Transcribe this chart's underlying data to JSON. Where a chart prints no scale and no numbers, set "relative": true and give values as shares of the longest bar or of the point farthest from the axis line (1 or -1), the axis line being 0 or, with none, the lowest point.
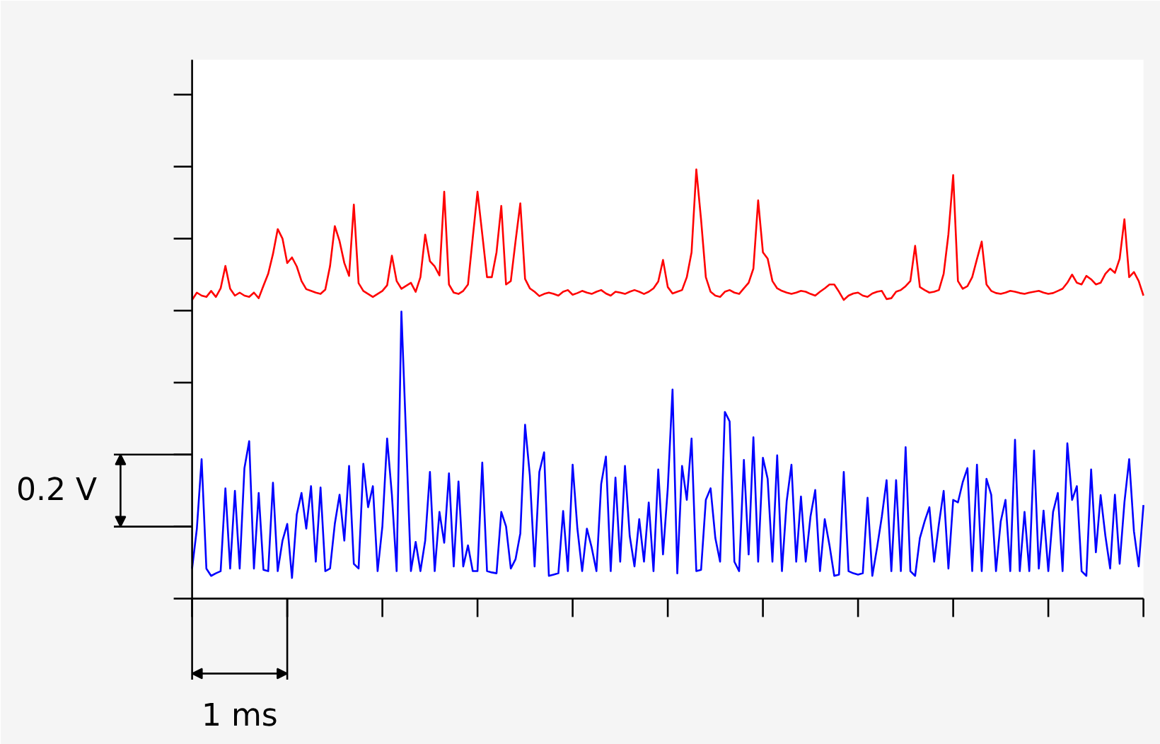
{
  "chart_data": {
    "type": "line",
    "relative": true,
    "categories": [
      null,
      null,
      null,
      null,
      null,
      null,
      null,
      null,
      null,
      null,
      null,
      null,
      null,
      null,
      null,
      null,
      null,
      null,
      null,
      null,
      null,
      null,
      null,
      null,
      null,
      null,
      null,
      null,
      null,
      null,
      null,
      null,
      null,
      null,
      null,
      null,
      null,
      null,
      null,
      null,
      null,
      null,
      null,
      null,
      null,
      null,
      null,
      null,
      null,
      null,
      null,
      null,
      null,
      null,
      null,
      null,
      null,
      null,
      null,
      null,
      null,
      null,
      null,
      null,
      null,
      null,
      null,
      null,
      null,
      null,
      null,
      null,
      null,
      null,
      null,
      null,
      null,
      null,
      null,
      null,
      null,
      null,
      null,
      null,
      null,
      null,
      null,
      null,
      null,
      null,
      null,
      null,
      null,
      null,
      null,
      null,
      null,
      null,
      null,
      null,
      null,
      null,
      null,
      null,
      null,
      null,
      null,
      null,
      null,
      null,
      null,
      null,
      null,
      null,
      null,
      null,
      null,
      null,
      null,
      null,
      null,
      null,
      null,
      null,
      null,
      null,
      null,
      null,
      null,
      null,
      null,
      null,
      null,
      null,
      null,
      null,
      null,
      null,
      null,
      null,
      null,
      null,
      null,
      null,
      null,
      null,
      null,
      null,
      null,
      null,
      null,
      null,
      null,
      null,
      null,
      null,
      null,
      null,
      null,
      null,
      null,
      null,
      null,
      null,
      null,
      null,
      null,
      null,
      null,
      null,
      null,
      null,
      null,
      null,
      null,
      null,
      null,
      null,
      null,
      null,
      null,
      null,
      null,
      null,
      null,
      null,
      null,
      null,
      null,
      null,
      null,
      null,
      null,
      null,
      null,
      null,
      null,
      null,
      null,
      null,
      null
    ],
    "annotations": [
      "0.2 V",
      "1 ms"
    ],
    "series": [
      {
        "color": "#ff0000",
        "values": [
          0.696,
          0.713,
          0.706,
          0.703,
          0.717,
          0.703,
          0.723,
          0.775,
          0.722,
          0.706,
          0.713,
          0.706,
          0.703,
          0.713,
          0.7,
          0.729,
          0.757,
          0.803,
          0.861,
          0.839,
          0.782,
          0.795,
          0.774,
          0.74,
          0.721,
          0.717,
          0.713,
          0.71,
          0.72,
          0.775,
          0.868,
          0.833,
          0.782,
          0.752,
          0.918,
          0.735,
          0.717,
          0.71,
          0.703,
          0.71,
          0.717,
          0.73,
          0.799,
          0.74,
          0.722,
          0.729,
          0.736,
          0.715,
          0.749,
          0.848,
          0.786,
          0.774,
          0.753,
          0.948,
          0.732,
          0.713,
          0.71,
          0.717,
          0.732,
          0.841,
          0.948,
          0.849,
          0.749,
          0.749,
          0.807,
          0.915,
          0.732,
          0.74,
          0.833,
          0.921,
          0.745,
          0.723,
          0.715,
          0.705,
          0.71,
          0.713,
          0.71,
          0.706,
          0.715,
          0.719,
          0.708,
          0.712,
          0.717,
          0.713,
          0.71,
          0.715,
          0.719,
          0.711,
          0.706,
          0.715,
          0.713,
          0.71,
          0.715,
          0.719,
          0.715,
          0.71,
          0.715,
          0.723,
          0.739,
          0.789,
          0.726,
          0.711,
          0.715,
          0.719,
          0.749,
          0.807,
          1.0,
          0.883,
          0.749,
          0.715,
          0.706,
          0.703,
          0.715,
          0.719,
          0.713,
          0.71,
          0.723,
          0.736,
          0.769,
          0.928,
          0.807,
          0.792,
          0.74,
          0.723,
          0.717,
          0.713,
          0.71,
          0.713,
          0.717,
          0.715,
          0.71,
          0.706,
          0.715,
          0.723,
          0.732,
          0.732,
          0.715,
          0.696,
          0.706,
          0.711,
          0.713,
          0.706,
          0.703,
          0.711,
          0.715,
          0.717,
          0.698,
          0.7,
          0.715,
          0.719,
          0.728,
          0.74,
          0.822,
          0.726,
          0.719,
          0.713,
          0.715,
          0.719,
          0.757,
          0.849,
          0.987,
          0.74,
          0.722,
          0.728,
          0.749,
          0.791,
          0.832,
          0.732,
          0.717,
          0.712,
          0.71,
          0.713,
          0.717,
          0.715,
          0.712,
          0.71,
          0.713,
          0.715,
          0.717,
          0.713,
          0.71,
          0.712,
          0.717,
          0.722,
          0.736,
          0.755,
          0.736,
          0.732,
          0.752,
          0.744,
          0.732,
          0.736,
          0.757,
          0.769,
          0.759,
          0.792,
          0.884,
          0.749,
          0.761,
          0.74,
          0.706
        ]
      },
      {
        "color": "#0000ff",
        "values": [
          0.07,
          0.163,
          0.325,
          0.07,
          0.053,
          0.059,
          0.064,
          0.257,
          0.07,
          0.251,
          0.07,
          0.304,
          0.367,
          0.07,
          0.246,
          0.067,
          0.064,
          0.27,
          0.064,
          0.135,
          0.174,
          0.048,
          0.196,
          0.246,
          0.163,
          0.262,
          0.086,
          0.259,
          0.064,
          0.07,
          0.174,
          0.242,
          0.135,
          0.309,
          0.081,
          0.07,
          0.314,
          0.213,
          0.262,
          0.064,
          0.168,
          0.373,
          0.242,
          0.064,
          0.669,
          0.373,
          0.064,
          0.132,
          0.064,
          0.135,
          0.295,
          0.064,
          0.202,
          0.13,
          0.292,
          0.075,
          0.273,
          0.075,
          0.124,
          0.064,
          0.064,
          0.317,
          0.064,
          0.061,
          0.059,
          0.202,
          0.168,
          0.07,
          0.092,
          0.152,
          0.405,
          0.287,
          0.075,
          0.295,
          0.341,
          0.053,
          0.056,
          0.059,
          0.204,
          0.064,
          0.312,
          0.163,
          0.064,
          0.163,
          0.119,
          0.064,
          0.267,
          0.331,
          0.064,
          0.282,
          0.086,
          0.309,
          0.146,
          0.075,
          0.185,
          0.086,
          0.224,
          0.064,
          0.301,
          0.103,
          0.257,
          0.487,
          0.059,
          0.309,
          0.23,
          0.373,
          0.064,
          0.067,
          0.23,
          0.257,
          0.141,
          0.086,
          0.435,
          0.413,
          0.086,
          0.064,
          0.323,
          0.103,
          0.376,
          0.086,
          0.328,
          0.279,
          0.086,
          0.334,
          0.064,
          0.227,
          0.312,
          0.086,
          0.238,
          0.086,
          0.191,
          0.253,
          0.064,
          0.185,
          0.124,
          0.053,
          0.056,
          0.295,
          0.064,
          0.059,
          0.056,
          0.059,
          0.235,
          0.053,
          0.119,
          0.191,
          0.276,
          0.064,
          0.276,
          0.064,
          0.353,
          0.064,
          0.053,
          0.141,
          0.18,
          0.213,
          0.086,
          0.174,
          0.251,
          0.07,
          0.23,
          0.224,
          0.271,
          0.304,
          0.064,
          0.312,
          0.064,
          0.279,
          0.242,
          0.064,
          0.18,
          0.23,
          0.064,
          0.37,
          0.064,
          0.202,
          0.064,
          0.345,
          0.07,
          0.205,
          0.064,
          0.202,
          0.246,
          0.064,
          0.362,
          0.23,
          0.262,
          0.064,
          0.053,
          0.301,
          0.108,
          0.241,
          0.146,
          0.07,
          0.242,
          0.081,
          0.224,
          0.325,
          0.157,
          0.075,
          0.218
        ]
      }
    ]
  }
}
